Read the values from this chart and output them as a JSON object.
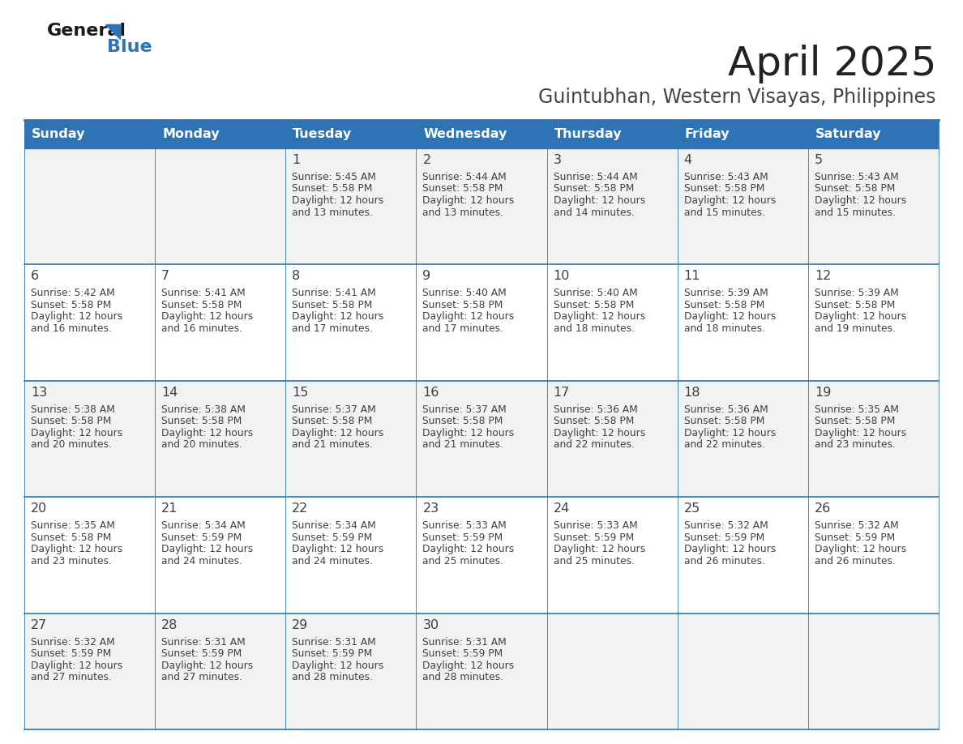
{
  "title": "April 2025",
  "subtitle": "Guintubhan, Western Visayas, Philippines",
  "days_of_week": [
    "Sunday",
    "Monday",
    "Tuesday",
    "Wednesday",
    "Thursday",
    "Friday",
    "Saturday"
  ],
  "header_bg": "#2E74B5",
  "header_text": "#FFFFFF",
  "row_bg_light": "#F2F2F2",
  "row_bg_white": "#FFFFFF",
  "cell_border": "#2E74B5",
  "text_color": "#404040",
  "title_color": "#222222",
  "subtitle_color": "#444444",
  "calendar_data": [
    [
      {
        "day": "",
        "sunrise": "",
        "sunset": "",
        "daylight": ""
      },
      {
        "day": "",
        "sunrise": "",
        "sunset": "",
        "daylight": ""
      },
      {
        "day": "1",
        "sunrise": "5:45 AM",
        "sunset": "5:58 PM",
        "daylight": "12 hours\nand 13 minutes."
      },
      {
        "day": "2",
        "sunrise": "5:44 AM",
        "sunset": "5:58 PM",
        "daylight": "12 hours\nand 13 minutes."
      },
      {
        "day": "3",
        "sunrise": "5:44 AM",
        "sunset": "5:58 PM",
        "daylight": "12 hours\nand 14 minutes."
      },
      {
        "day": "4",
        "sunrise": "5:43 AM",
        "sunset": "5:58 PM",
        "daylight": "12 hours\nand 15 minutes."
      },
      {
        "day": "5",
        "sunrise": "5:43 AM",
        "sunset": "5:58 PM",
        "daylight": "12 hours\nand 15 minutes."
      }
    ],
    [
      {
        "day": "6",
        "sunrise": "5:42 AM",
        "sunset": "5:58 PM",
        "daylight": "12 hours\nand 16 minutes."
      },
      {
        "day": "7",
        "sunrise": "5:41 AM",
        "sunset": "5:58 PM",
        "daylight": "12 hours\nand 16 minutes."
      },
      {
        "day": "8",
        "sunrise": "5:41 AM",
        "sunset": "5:58 PM",
        "daylight": "12 hours\nand 17 minutes."
      },
      {
        "day": "9",
        "sunrise": "5:40 AM",
        "sunset": "5:58 PM",
        "daylight": "12 hours\nand 17 minutes."
      },
      {
        "day": "10",
        "sunrise": "5:40 AM",
        "sunset": "5:58 PM",
        "daylight": "12 hours\nand 18 minutes."
      },
      {
        "day": "11",
        "sunrise": "5:39 AM",
        "sunset": "5:58 PM",
        "daylight": "12 hours\nand 18 minutes."
      },
      {
        "day": "12",
        "sunrise": "5:39 AM",
        "sunset": "5:58 PM",
        "daylight": "12 hours\nand 19 minutes."
      }
    ],
    [
      {
        "day": "13",
        "sunrise": "5:38 AM",
        "sunset": "5:58 PM",
        "daylight": "12 hours\nand 20 minutes."
      },
      {
        "day": "14",
        "sunrise": "5:38 AM",
        "sunset": "5:58 PM",
        "daylight": "12 hours\nand 20 minutes."
      },
      {
        "day": "15",
        "sunrise": "5:37 AM",
        "sunset": "5:58 PM",
        "daylight": "12 hours\nand 21 minutes."
      },
      {
        "day": "16",
        "sunrise": "5:37 AM",
        "sunset": "5:58 PM",
        "daylight": "12 hours\nand 21 minutes."
      },
      {
        "day": "17",
        "sunrise": "5:36 AM",
        "sunset": "5:58 PM",
        "daylight": "12 hours\nand 22 minutes."
      },
      {
        "day": "18",
        "sunrise": "5:36 AM",
        "sunset": "5:58 PM",
        "daylight": "12 hours\nand 22 minutes."
      },
      {
        "day": "19",
        "sunrise": "5:35 AM",
        "sunset": "5:58 PM",
        "daylight": "12 hours\nand 23 minutes."
      }
    ],
    [
      {
        "day": "20",
        "sunrise": "5:35 AM",
        "sunset": "5:58 PM",
        "daylight": "12 hours\nand 23 minutes."
      },
      {
        "day": "21",
        "sunrise": "5:34 AM",
        "sunset": "5:59 PM",
        "daylight": "12 hours\nand 24 minutes."
      },
      {
        "day": "22",
        "sunrise": "5:34 AM",
        "sunset": "5:59 PM",
        "daylight": "12 hours\nand 24 minutes."
      },
      {
        "day": "23",
        "sunrise": "5:33 AM",
        "sunset": "5:59 PM",
        "daylight": "12 hours\nand 25 minutes."
      },
      {
        "day": "24",
        "sunrise": "5:33 AM",
        "sunset": "5:59 PM",
        "daylight": "12 hours\nand 25 minutes."
      },
      {
        "day": "25",
        "sunrise": "5:32 AM",
        "sunset": "5:59 PM",
        "daylight": "12 hours\nand 26 minutes."
      },
      {
        "day": "26",
        "sunrise": "5:32 AM",
        "sunset": "5:59 PM",
        "daylight": "12 hours\nand 26 minutes."
      }
    ],
    [
      {
        "day": "27",
        "sunrise": "5:32 AM",
        "sunset": "5:59 PM",
        "daylight": "12 hours\nand 27 minutes."
      },
      {
        "day": "28",
        "sunrise": "5:31 AM",
        "sunset": "5:59 PM",
        "daylight": "12 hours\nand 27 minutes."
      },
      {
        "day": "29",
        "sunrise": "5:31 AM",
        "sunset": "5:59 PM",
        "daylight": "12 hours\nand 28 minutes."
      },
      {
        "day": "30",
        "sunrise": "5:31 AM",
        "sunset": "5:59 PM",
        "daylight": "12 hours\nand 28 minutes."
      },
      {
        "day": "",
        "sunrise": "",
        "sunset": "",
        "daylight": ""
      },
      {
        "day": "",
        "sunrise": "",
        "sunset": "",
        "daylight": ""
      },
      {
        "day": "",
        "sunrise": "",
        "sunset": "",
        "daylight": ""
      }
    ]
  ]
}
